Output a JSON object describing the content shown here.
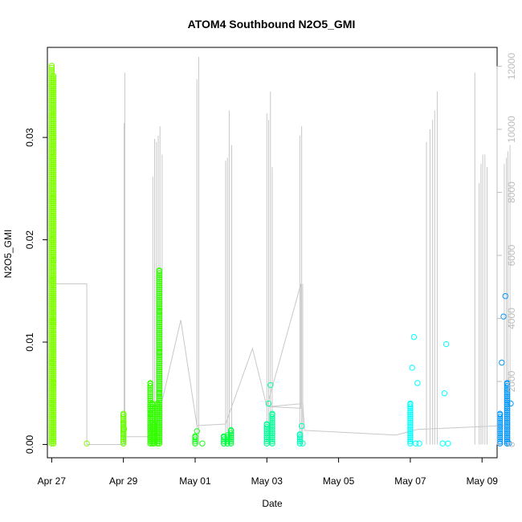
{
  "chart_data": {
    "type": "scatter",
    "title": "ATOM4 Southbound N2O5_GMI",
    "xlabel": "Date",
    "ylabel": "N2O5_GMI",
    "xlim": [
      -0.12,
      12.42
    ],
    "ylim": [
      -0.0013,
      0.0388
    ],
    "ylim_right": [
      -420,
      12600
    ],
    "x_ticks": [
      {
        "x": 0,
        "label": "Apr 27"
      },
      {
        "x": 2,
        "label": "Apr 29"
      },
      {
        "x": 4,
        "label": "May 01"
      },
      {
        "x": 6,
        "label": "May 03"
      },
      {
        "x": 8,
        "label": "May 05"
      },
      {
        "x": 10,
        "label": "May 07"
      },
      {
        "x": 12,
        "label": "May 09"
      }
    ],
    "y_ticks": [
      {
        "v": 0.0,
        "label": "0.00"
      },
      {
        "v": 0.01,
        "label": "0.01"
      },
      {
        "v": 0.02,
        "label": "0.02"
      },
      {
        "v": 0.03,
        "label": "0.03"
      }
    ],
    "y_ticks_right": [
      {
        "v": 0,
        "label": "0"
      },
      {
        "v": 2000,
        "label": "2000"
      },
      {
        "v": 4000,
        "label": "4000"
      },
      {
        "v": 6000,
        "label": "6000"
      },
      {
        "v": 8000,
        "label": "8000"
      },
      {
        "v": 10000,
        "label": "10000"
      },
      {
        "v": 12000,
        "label": "12000"
      }
    ],
    "altitude_series": {
      "color": "#c8c8c8",
      "spikes": [
        {
          "x": 0.03,
          "top": 5100
        },
        {
          "x": 0.98,
          "top": 0
        },
        {
          "x": 2.02,
          "top": 10200
        },
        {
          "x": 2.04,
          "top": 11800
        },
        {
          "x": 2.82,
          "top": 8500
        },
        {
          "x": 2.87,
          "top": 9700
        },
        {
          "x": 2.92,
          "top": 9600
        },
        {
          "x": 2.97,
          "top": 9800
        },
        {
          "x": 3.02,
          "top": 10100
        },
        {
          "x": 3.08,
          "top": 9200
        },
        {
          "x": 4.05,
          "top": 11600
        },
        {
          "x": 4.1,
          "top": 12300
        },
        {
          "x": 4.85,
          "top": 9000
        },
        {
          "x": 4.9,
          "top": 9100
        },
        {
          "x": 4.95,
          "top": 10600
        },
        {
          "x": 5.02,
          "top": 9500
        },
        {
          "x": 6.0,
          "top": 10500
        },
        {
          "x": 6.05,
          "top": 10300
        },
        {
          "x": 6.1,
          "top": 11200
        },
        {
          "x": 6.15,
          "top": 8800
        },
        {
          "x": 6.92,
          "top": 9800
        },
        {
          "x": 6.97,
          "top": 10100
        },
        {
          "x": 7.0,
          "top": 5100
        },
        {
          "x": 10.45,
          "top": 9600
        },
        {
          "x": 10.55,
          "top": 10000
        },
        {
          "x": 10.62,
          "top": 10300
        },
        {
          "x": 10.68,
          "top": 10600
        },
        {
          "x": 10.75,
          "top": 11200
        },
        {
          "x": 11.8,
          "top": 11800
        },
        {
          "x": 11.92,
          "top": 8300
        },
        {
          "x": 11.97,
          "top": 8900
        },
        {
          "x": 12.02,
          "top": 9200
        },
        {
          "x": 12.08,
          "top": 9200
        },
        {
          "x": 12.14,
          "top": 8800
        },
        {
          "x": 12.62,
          "top": 8900
        },
        {
          "x": 12.68,
          "top": 9100
        },
        {
          "x": 12.72,
          "top": 9300
        },
        {
          "x": 12.78,
          "top": 9500
        }
      ],
      "path": [
        [
          0.03,
          0
        ],
        [
          0.03,
          5100
        ],
        [
          0.98,
          5100
        ],
        [
          0.98,
          0
        ],
        [
          2.0,
          0
        ],
        [
          2.0,
          250
        ],
        [
          2.85,
          250
        ],
        [
          3.6,
          3950
        ],
        [
          4.05,
          600
        ],
        [
          4.85,
          650
        ],
        [
          5.6,
          3050
        ],
        [
          6.0,
          1200
        ],
        [
          6.95,
          5100
        ],
        [
          6.95,
          1150
        ],
        [
          6.05,
          1200
        ],
        [
          7.0,
          1300
        ],
        [
          7.05,
          450
        ],
        [
          9.6,
          300
        ],
        [
          10.2,
          480
        ],
        [
          12.6,
          600
        ]
      ]
    },
    "series": [
      {
        "color": "#7fff00",
        "points": [
          [
            0.0,
            0.0001
          ],
          [
            0.0,
            0.004
          ],
          [
            0.0,
            0.008
          ],
          [
            0.0,
            0.012
          ],
          [
            0.0,
            0.016
          ],
          [
            0.0,
            0.02
          ],
          [
            0.0,
            0.024
          ],
          [
            0.0,
            0.028
          ],
          [
            0.0,
            0.032
          ],
          [
            0.0,
            0.035
          ],
          [
            0.0,
            0.037
          ],
          [
            0.05,
            0.0001
          ],
          [
            0.05,
            0.006
          ],
          [
            0.05,
            0.012
          ],
          [
            0.05,
            0.018
          ],
          [
            0.05,
            0.024
          ],
          [
            0.05,
            0.03
          ],
          [
            0.05,
            0.036
          ],
          [
            0.98,
            0.0001
          ]
        ]
      },
      {
        "color": "#66ff00",
        "points": [
          [
            2.0,
            0.0001
          ],
          [
            2.0,
            0.001
          ],
          [
            2.0,
            0.002
          ],
          [
            2.0,
            0.003
          ],
          [
            2.02,
            0.0015
          ]
        ]
      },
      {
        "color": "#33ff00",
        "points": [
          [
            2.75,
            0.0001
          ],
          [
            2.75,
            0.003
          ],
          [
            2.75,
            0.006
          ],
          [
            2.8,
            0.0001
          ],
          [
            2.8,
            0.004
          ],
          [
            2.85,
            0.0001
          ],
          [
            2.85,
            0.002
          ],
          [
            2.95,
            0.0001
          ],
          [
            2.95,
            0.004
          ],
          [
            3.0,
            0.0001
          ],
          [
            3.0,
            0.005
          ],
          [
            3.0,
            0.009
          ],
          [
            3.0,
            0.013
          ],
          [
            3.0,
            0.017
          ]
        ]
      },
      {
        "color": "#1aff1a",
        "points": [
          [
            4.0,
            0.0001
          ],
          [
            4.0,
            0.0008
          ],
          [
            4.05,
            0.0013
          ],
          [
            4.2,
            0.0001
          ]
        ]
      },
      {
        "color": "#00ff40",
        "points": [
          [
            4.8,
            0.0001
          ],
          [
            4.8,
            0.0008
          ],
          [
            4.9,
            0.0001
          ],
          [
            4.9,
            0.0009
          ],
          [
            5.0,
            0.0001
          ],
          [
            5.0,
            0.0014
          ]
        ]
      },
      {
        "color": "#00ff99",
        "points": [
          [
            6.0,
            0.0001
          ],
          [
            6.0,
            0.002
          ],
          [
            6.05,
            0.004
          ],
          [
            6.1,
            0.0058
          ],
          [
            6.15,
            0.0001
          ],
          [
            6.15,
            0.003
          ]
        ]
      },
      {
        "color": "#00ffbf",
        "points": [
          [
            6.92,
            0.0001
          ],
          [
            6.92,
            0.001
          ],
          [
            6.97,
            0.0018
          ],
          [
            7.0,
            0.0001
          ]
        ]
      },
      {
        "color": "#00ffff",
        "points": [
          [
            10.0,
            0.0001
          ],
          [
            10.0,
            0.004
          ],
          [
            10.05,
            0.0075
          ],
          [
            10.1,
            0.0105
          ],
          [
            10.15,
            0.0001
          ],
          [
            10.2,
            0.006
          ],
          [
            10.25,
            0.0001
          ],
          [
            10.9,
            0.0001
          ],
          [
            10.95,
            0.005
          ],
          [
            11.0,
            0.0098
          ],
          [
            11.05,
            0.0001
          ]
        ]
      },
      {
        "color": "#0099ff",
        "points": [
          [
            12.5,
            0.0001
          ],
          [
            12.5,
            0.003
          ],
          [
            12.55,
            0.008
          ],
          [
            12.6,
            0.0125
          ],
          [
            12.65,
            0.0145
          ],
          [
            12.7,
            0.0001
          ],
          [
            12.7,
            0.006
          ],
          [
            12.75,
            0.0001
          ],
          [
            12.8,
            0.004
          ]
        ]
      }
    ]
  }
}
